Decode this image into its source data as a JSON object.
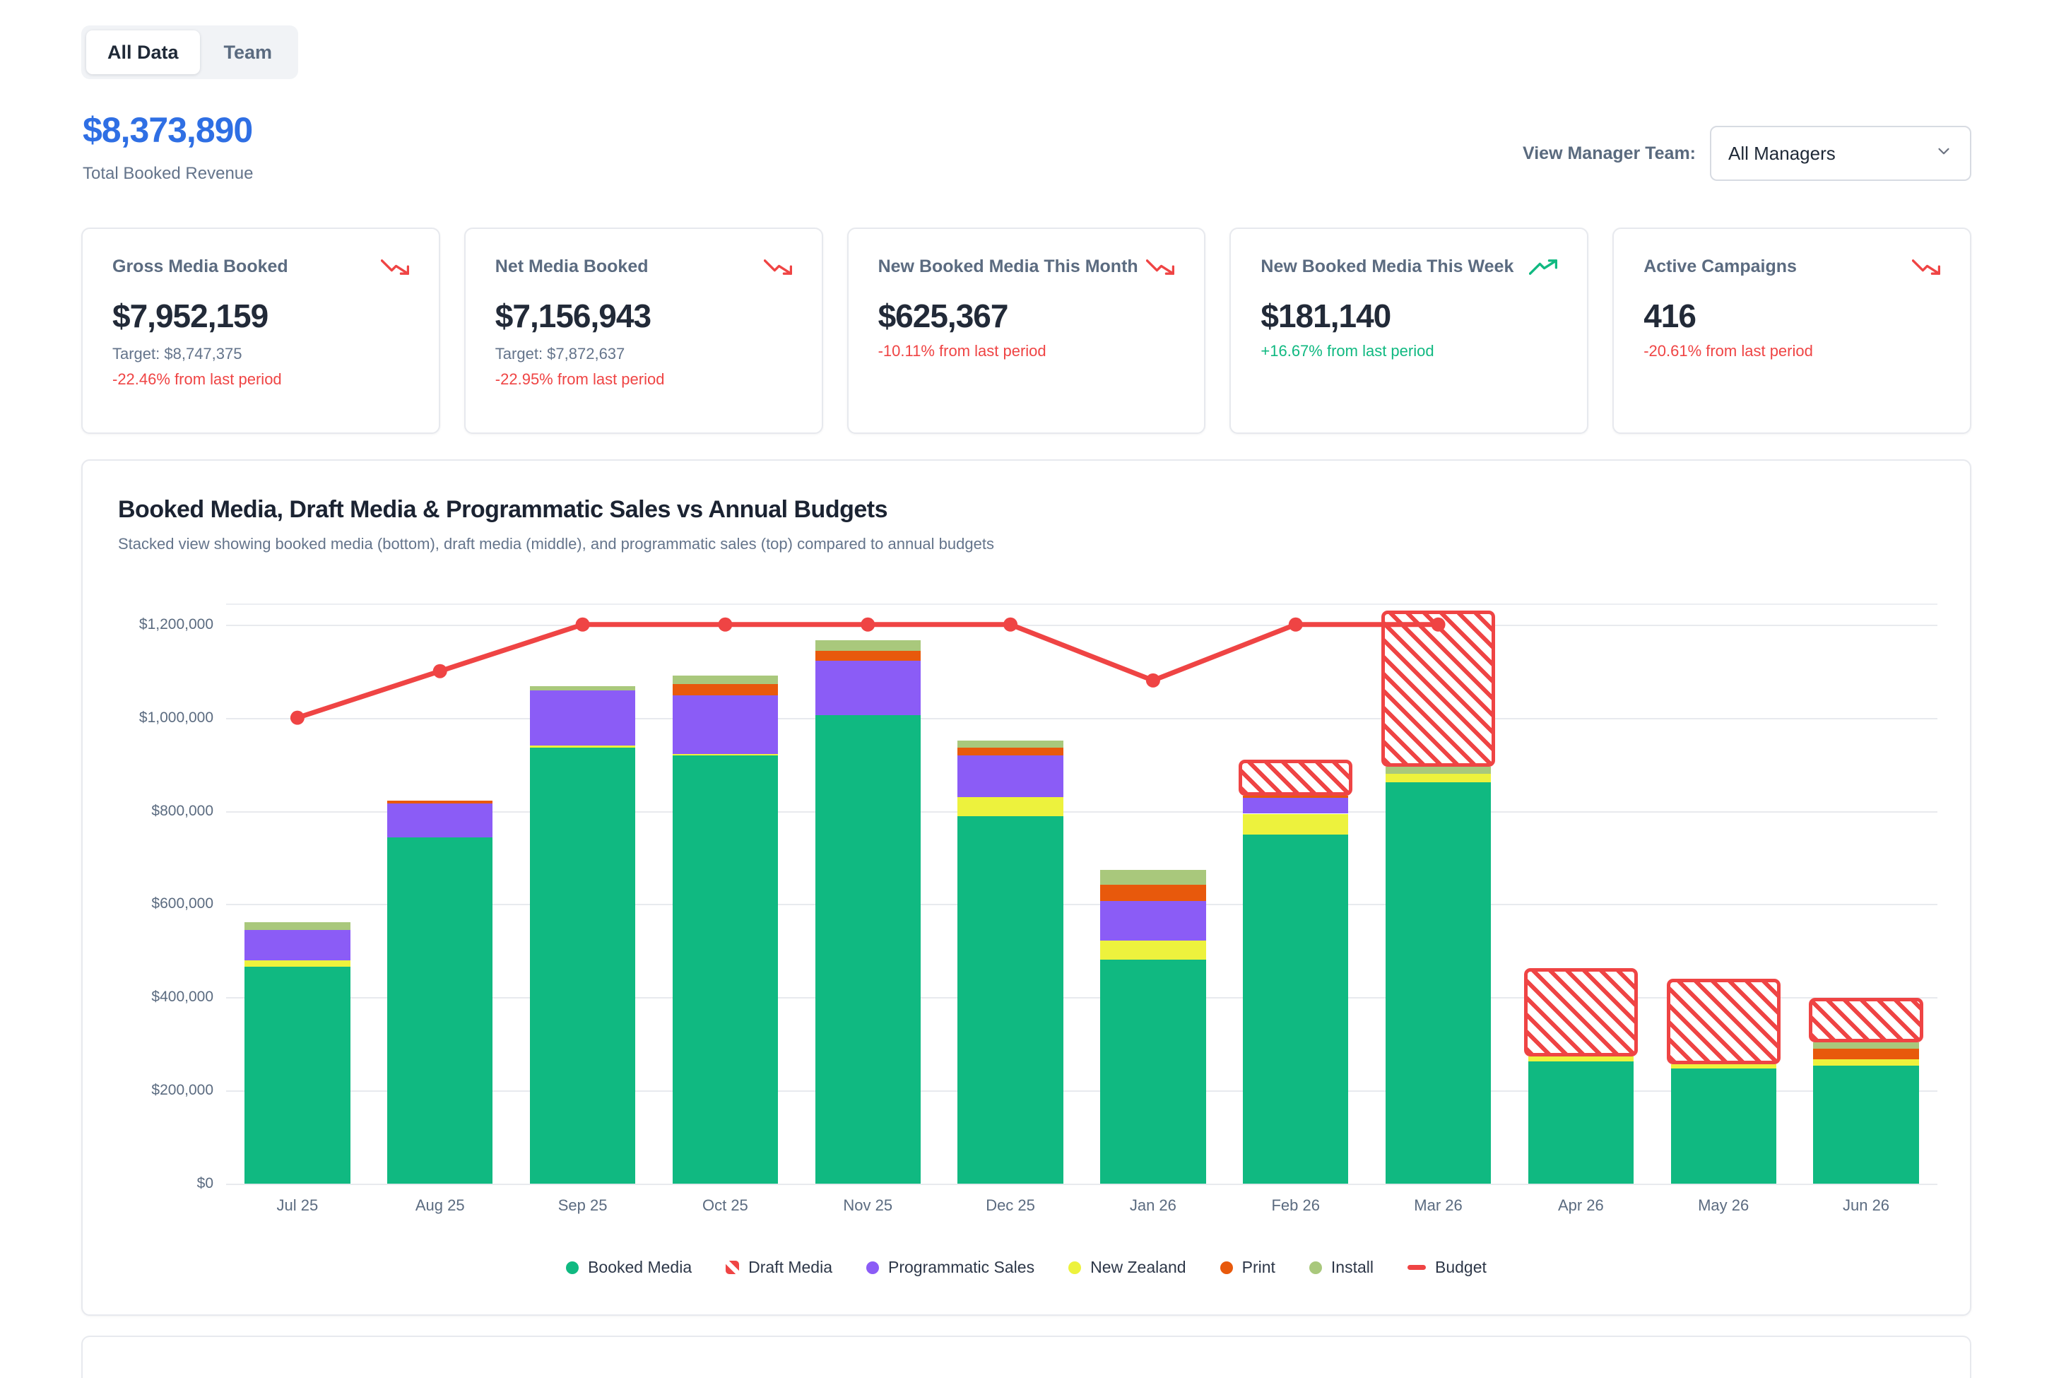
{
  "tabs": [
    {
      "label": "All Data",
      "active": true
    },
    {
      "label": "Team",
      "active": false
    }
  ],
  "summary": {
    "total_revenue": "$8,373,890",
    "total_revenue_label": "Total Booked Revenue"
  },
  "manager_filter": {
    "label": "View Manager Team:",
    "selected_option": "All Managers"
  },
  "kpi_cards": [
    {
      "title": "Gross Media Booked",
      "trend": "down",
      "value": "$7,952,159",
      "target": "Target: $8,747,375",
      "change": "-22.46% from last period"
    },
    {
      "title": "Net Media Booked",
      "trend": "down",
      "value": "$7,156,943",
      "target": "Target: $7,872,637",
      "change": "-22.95% from last period"
    },
    {
      "title": "New Booked Media This Month",
      "trend": "down",
      "value": "$625,367",
      "target": "",
      "change": "-10.11% from last period"
    },
    {
      "title": "New Booked Media This Week",
      "trend": "up",
      "value": "$181,140",
      "target": "",
      "change": "+16.67% from last period"
    },
    {
      "title": "Active Campaigns",
      "trend": "down",
      "value": "416",
      "target": "",
      "change": "-20.61% from last period"
    }
  ],
  "chart": {
    "title": "Booked Media, Draft Media & Programmatic Sales vs Annual Budgets",
    "subtitle": "Stacked view showing booked media (bottom), draft media (middle), and programmatic sales (top) compared to annual budgets"
  },
  "chart_data": {
    "type": "bar",
    "subtype": "stacked bars with budget line overlay",
    "categories": [
      "Jul 25",
      "Aug 25",
      "Sep 25",
      "Oct 25",
      "Nov 25",
      "Dec 25",
      "Jan 26",
      "Feb 26",
      "Mar 26",
      "Apr 26",
      "May 26",
      "Jun 26"
    ],
    "series": [
      {
        "name": "Booked Media",
        "color": "#10b981",
        "hatched": false,
        "values": [
          465000,
          743000,
          936000,
          919000,
          1005000,
          789000,
          481000,
          749000,
          862000,
          262000,
          247000,
          254000
        ]
      },
      {
        "name": "New Zealand",
        "color": "#edf23d",
        "hatched": false,
        "values": [
          15000,
          0,
          5000,
          3000,
          0,
          40000,
          41000,
          45000,
          18000,
          11000,
          10000,
          13000
        ]
      },
      {
        "name": "Programmatic Sales",
        "color": "#8b5cf6",
        "hatched": false,
        "values": [
          64000,
          73000,
          118000,
          126000,
          118000,
          90000,
          85000,
          34000,
          0,
          0,
          0,
          0
        ]
      },
      {
        "name": "Print",
        "color": "#e8590c",
        "hatched": false,
        "values": [
          0,
          6000,
          0,
          24000,
          20000,
          17000,
          34000,
          4000,
          0,
          0,
          0,
          22000
        ]
      },
      {
        "name": "Install",
        "color": "#a9c87c",
        "hatched": false,
        "values": [
          17000,
          0,
          9000,
          19000,
          23000,
          15000,
          33000,
          0,
          15000,
          0,
          0,
          15000
        ]
      },
      {
        "name": "Draft Media",
        "color": "#ef4444",
        "hatched": true,
        "values": [
          0,
          0,
          0,
          0,
          0,
          0,
          0,
          78000,
          335000,
          190000,
          183000,
          95000
        ]
      }
    ],
    "budget_line": {
      "name": "Budget",
      "color": "#ef4444",
      "values": [
        1000000,
        1100000,
        1200000,
        1200000,
        1200000,
        1200000,
        1080000,
        1200000,
        1200000,
        null,
        null,
        null
      ]
    },
    "ylim": [
      0,
      1230000
    ],
    "yticks": [
      {
        "label": "$0",
        "value": 0
      },
      {
        "label": "$200,000",
        "value": 200000
      },
      {
        "label": "$400,000",
        "value": 400000
      },
      {
        "label": "$600,000",
        "value": 600000
      },
      {
        "label": "$800,000",
        "value": 800000
      },
      {
        "label": "$1,000,000",
        "value": 1000000
      },
      {
        "label": "$1,200,000",
        "value": 1200000
      }
    ],
    "grid": true,
    "legend_position": "bottom",
    "legend": [
      {
        "label": "Booked Media",
        "marker": "circle",
        "color": "#10b981"
      },
      {
        "label": "Draft Media",
        "marker": "hatch",
        "color": "#ef4444"
      },
      {
        "label": "Programmatic Sales",
        "marker": "circle",
        "color": "#8b5cf6"
      },
      {
        "label": "New Zealand",
        "marker": "circle",
        "color": "#edf23d"
      },
      {
        "label": "Print",
        "marker": "circle",
        "color": "#e8590c"
      },
      {
        "label": "Install",
        "marker": "circle",
        "color": "#a9c87c"
      },
      {
        "label": "Budget",
        "marker": "line",
        "color": "#ef4444"
      }
    ]
  },
  "colors": {
    "accent_blue": "#2f6fe4",
    "negative_red": "#ef4444",
    "positive_green": "#10b981"
  }
}
